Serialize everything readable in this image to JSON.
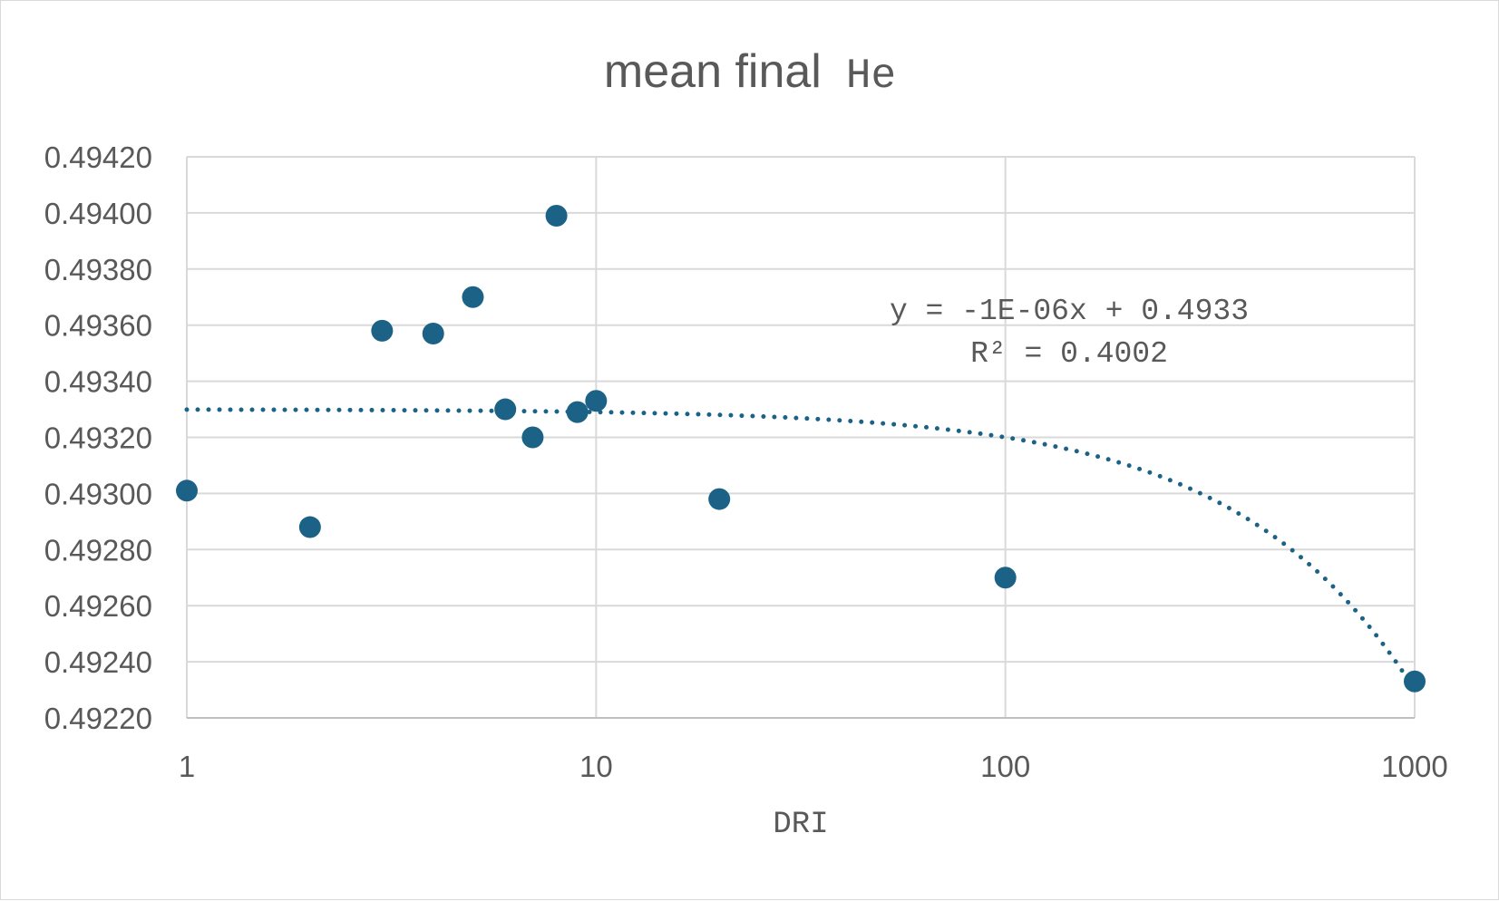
{
  "chart_data": {
    "type": "scatter",
    "title": {
      "text": "mean final",
      "suffix": "He"
    },
    "xlabel": "DRI",
    "ylabel": "",
    "x_scale": "log",
    "xlim": [
      1,
      1000
    ],
    "ylim": [
      0.4922,
      0.4942
    ],
    "x_ticks": [
      "1",
      "10",
      "100",
      "1000"
    ],
    "y_ticks": [
      "0.49220",
      "0.49240",
      "0.49260",
      "0.49280",
      "0.49300",
      "0.49320",
      "0.49340",
      "0.49360",
      "0.49380",
      "0.49400",
      "0.49420"
    ],
    "grid": true,
    "legend": "none",
    "series": [
      {
        "color": "#1b6286",
        "points": [
          {
            "x": 1,
            "y": 0.49301
          },
          {
            "x": 2,
            "y": 0.49288
          },
          {
            "x": 3,
            "y": 0.49358
          },
          {
            "x": 4,
            "y": 0.49357
          },
          {
            "x": 5,
            "y": 0.4937
          },
          {
            "x": 6,
            "y": 0.4933
          },
          {
            "x": 7,
            "y": 0.4932
          },
          {
            "x": 8,
            "y": 0.49399
          },
          {
            "x": 9,
            "y": 0.49329
          },
          {
            "x": 10,
            "y": 0.49333
          },
          {
            "x": 20,
            "y": 0.49298
          },
          {
            "x": 100,
            "y": 0.4927
          },
          {
            "x": 1000,
            "y": 0.49233
          }
        ]
      }
    ],
    "trendline": {
      "type": "linear",
      "style": "dotted",
      "color": "#1b6286",
      "slope": -1e-06,
      "intercept": 0.4933,
      "equation": "y = -1E-06x + 0.4933",
      "r2": "R² = 0.4002"
    }
  }
}
